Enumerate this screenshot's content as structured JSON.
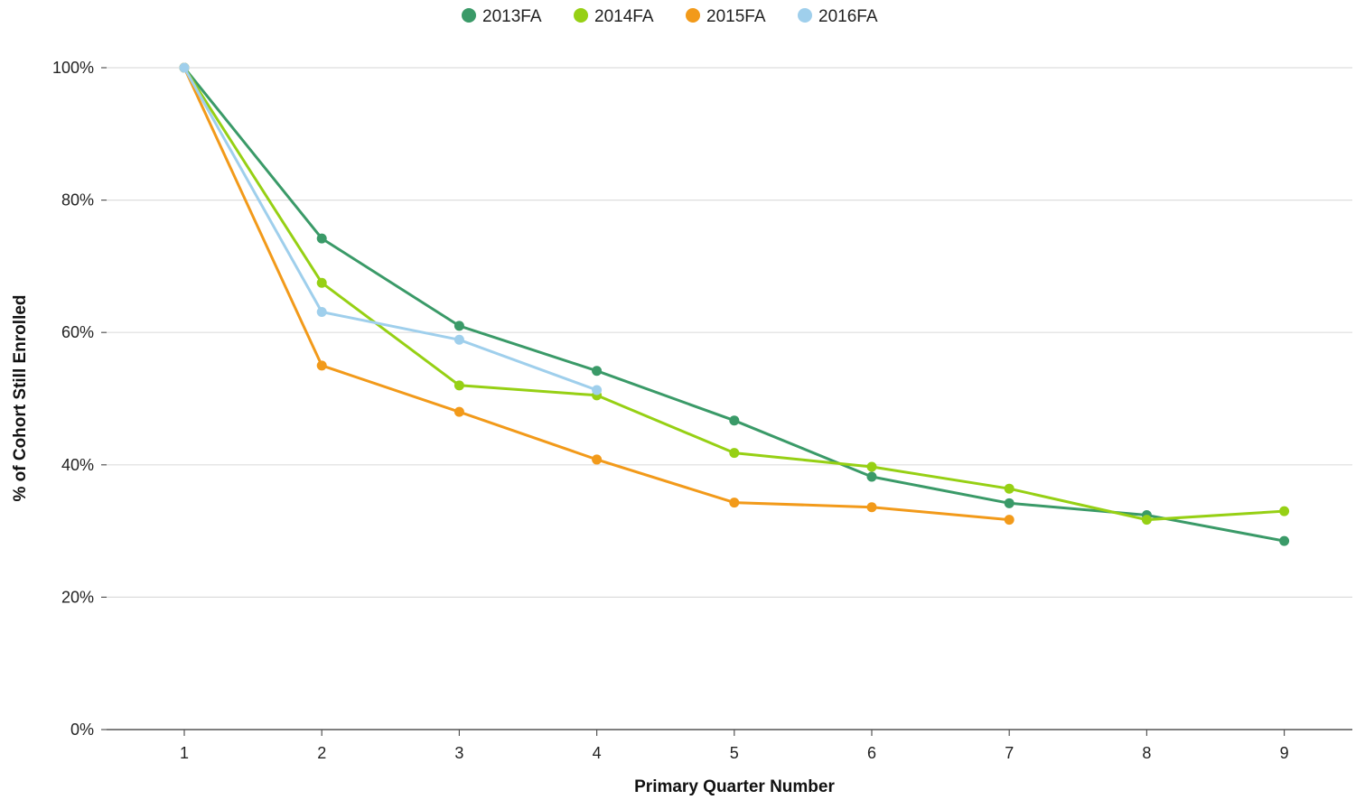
{
  "chart_data": {
    "type": "line",
    "title": "",
    "xlabel": "Primary Quarter Number",
    "ylabel": "% of Cohort Still Enrolled",
    "x": [
      1,
      2,
      3,
      4,
      5,
      6,
      7,
      8,
      9
    ],
    "x_tick_labels": [
      "1",
      "2",
      "3",
      "4",
      "5",
      "6",
      "7",
      "8",
      "9"
    ],
    "ylim": [
      0,
      100
    ],
    "y_ticks": [
      0,
      20,
      40,
      60,
      80,
      100
    ],
    "y_tick_labels": [
      "0%",
      "20%",
      "40%",
      "60%",
      "80%",
      "100%"
    ],
    "grid": true,
    "legend_position": "top-center",
    "series": [
      {
        "name": "2013FA",
        "color": "#3a9a68",
        "values": [
          100,
          74.2,
          61.0,
          54.2,
          46.7,
          38.2,
          34.2,
          32.4,
          28.5
        ]
      },
      {
        "name": "2014FA",
        "color": "#96d014",
        "values": [
          100,
          67.5,
          52.0,
          50.5,
          41.8,
          39.7,
          36.4,
          31.7,
          33.0
        ]
      },
      {
        "name": "2015FA",
        "color": "#f29a1a",
        "values": [
          100,
          55.0,
          48.0,
          40.8,
          34.3,
          33.6,
          31.7,
          null,
          null
        ]
      },
      {
        "name": "2016FA",
        "color": "#9fcfec",
        "values": [
          100,
          63.1,
          58.9,
          51.3,
          null,
          null,
          null,
          null,
          null
        ]
      }
    ]
  }
}
